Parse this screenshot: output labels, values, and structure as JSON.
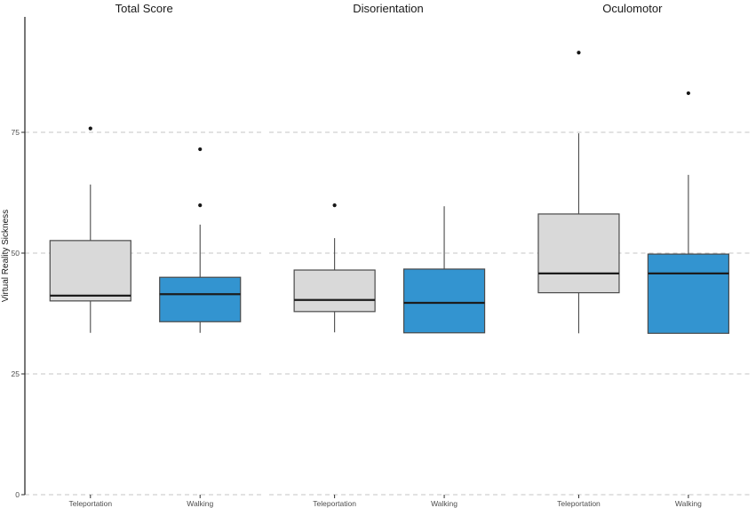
{
  "figure": {
    "background": "#ffffff"
  },
  "chart_data": {
    "type": "boxplot",
    "title": "",
    "xlabel": "",
    "ylabel": "Virtual Reality Sickness",
    "ylim": [
      0,
      99
    ],
    "y_ticks": [
      0,
      25,
      50,
      75
    ],
    "grid": {
      "style": "dashed",
      "orientation": "horizontal",
      "lines_at": [
        0,
        25,
        50,
        75
      ],
      "color": "#c4c4c4"
    },
    "legend_position": "none",
    "categories": [
      "Teleportation",
      "Walking"
    ],
    "palette": {
      "Teleportation": "#d9d9d9",
      "Walking": "#3394d0"
    },
    "facets": [
      {
        "title": "Total Score",
        "boxes": [
          {
            "category": "Teleportation",
            "min": 33.5,
            "q1": 40.1,
            "median": 41.2,
            "q3": 52.6,
            "max": 64.2,
            "outliers": [
              75.8
            ]
          },
          {
            "category": "Walking",
            "min": 33.5,
            "q1": 35.8,
            "median": 41.5,
            "q3": 45.0,
            "max": 55.9,
            "outliers": [
              59.9,
              71.5
            ]
          }
        ]
      },
      {
        "title": "Disorientation",
        "boxes": [
          {
            "category": "Teleportation",
            "min": 33.6,
            "q1": 37.9,
            "median": 40.3,
            "q3": 46.5,
            "max": 53.1,
            "outliers": [
              59.9
            ]
          },
          {
            "category": "Walking",
            "min": 33.5,
            "q1": 33.5,
            "median": 39.7,
            "q3": 46.7,
            "max": 59.7,
            "outliers": []
          }
        ]
      },
      {
        "title": "Oculomotor",
        "boxes": [
          {
            "category": "Teleportation",
            "min": 33.4,
            "q1": 41.8,
            "median": 45.8,
            "q3": 58.1,
            "max": 74.8,
            "outliers": [
              91.5
            ]
          },
          {
            "category": "Walking",
            "min": 33.4,
            "q1": 33.4,
            "median": 45.8,
            "q3": 49.8,
            "max": 66.2,
            "outliers": [
              83.1
            ]
          }
        ]
      }
    ],
    "colors": {
      "box_stroke": "#4a4a4a",
      "median": "#1c1c1c",
      "whisker": "#4a4a4a",
      "outlier": "#161616",
      "axis_line": "#2e2e2e",
      "tick_label": "#4d4d4d",
      "facet_title": "#1a1a1a",
      "axis_title": "#1a1a1a",
      "gridline": "#c4c4c4"
    }
  }
}
